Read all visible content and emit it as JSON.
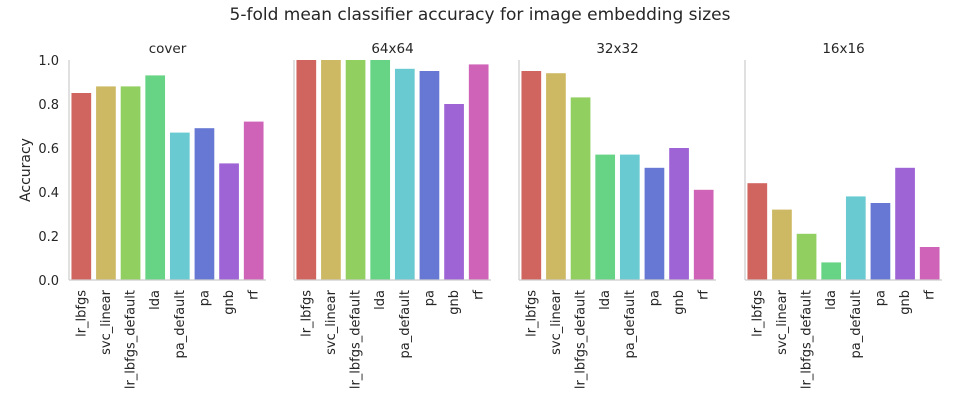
{
  "title": "5-fold mean classifier accuracy for image embedding sizes",
  "ylabel": "Accuracy",
  "chart_data": {
    "type": "bar",
    "title": "5-fold mean classifier accuracy for image embedding sizes",
    "ylabel": "Accuracy",
    "xlabel": "",
    "ylim": [
      0,
      1.0
    ],
    "yticks": [
      "0.0",
      "0.2",
      "0.4",
      "0.6",
      "0.8",
      "1.0"
    ],
    "grid": false,
    "categories": [
      "lr_lbfgs",
      "svc_linear",
      "lr_lbfgs_default",
      "lda",
      "pa_default",
      "pa",
      "gnb",
      "rf"
    ],
    "colors": [
      "#d0645e",
      "#cdb964",
      "#91cf60",
      "#67d384",
      "#69cad2",
      "#6678d3",
      "#9e63d4",
      "#cf63b7"
    ],
    "panels": [
      {
        "title": "cover",
        "values": [
          0.85,
          0.88,
          0.88,
          0.93,
          0.67,
          0.69,
          0.53,
          0.72
        ]
      },
      {
        "title": "64x64",
        "values": [
          1.0,
          1.0,
          1.0,
          1.0,
          0.96,
          0.95,
          0.8,
          0.98
        ]
      },
      {
        "title": "32x32",
        "values": [
          0.95,
          0.94,
          0.83,
          0.57,
          0.57,
          0.51,
          0.6,
          0.41
        ]
      },
      {
        "title": "16x16",
        "values": [
          0.44,
          0.32,
          0.21,
          0.08,
          0.38,
          0.35,
          0.51,
          0.15
        ]
      }
    ]
  }
}
